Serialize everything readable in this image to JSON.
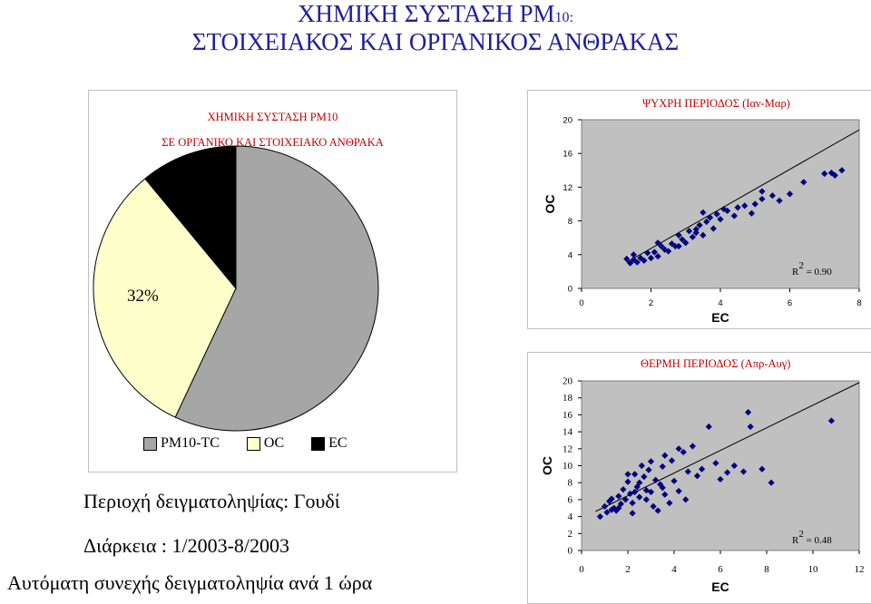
{
  "header": {
    "line1_main": "ΧΗΜΙΚΗ ΣΥΣΤΑΣΗ PM",
    "line1_sub": "10:",
    "line2": "ΣΤΟΙΧΕΙΑΚΟΣ ΚΑΙ ΟΡΓΑΝΙΚΟΣ ΑΝΘΡΑΚΑΣ"
  },
  "info": {
    "area": "Περιοχή δειγματοληψίας: Γουδί",
    "period": "Διάρκεια : 1/2003-8/2003",
    "sampling": "Αυτόματη συνεχής δειγματοληψία ανά 1 ώρα"
  },
  "colors": {
    "title": "#1f1f9e",
    "chart_title": "#c00000",
    "marker": "#000080",
    "plot_bg": "#c0c0c0",
    "pie_tc": "#a6a6a6",
    "pie_oc": "#ffffcc",
    "pie_ec": "#000000"
  },
  "chart_data": [
    {
      "type": "pie",
      "title_line1": "ΧΗΜΙΚΗ ΣΥΣΤΑΣΗ PM10",
      "title_line2": "ΣΕ ΟΡΓΑΝΙΚΟ ΚΑΙ ΣΤΟΙΧΕΙΑΚΟ ΑΝΘΡΑΚΑ",
      "slices": [
        {
          "name": "PM10-TC",
          "value": 57,
          "label": "",
          "color": "#a6a6a6"
        },
        {
          "name": "OC",
          "value": 32,
          "label": "32%",
          "color": "#ffffcc"
        },
        {
          "name": "EC",
          "value": 11,
          "label": "11%",
          "color": "#000000"
        }
      ],
      "legend": "bottom"
    },
    {
      "type": "scatter",
      "title": "ΨΥΧΡΗ ΠΕΡΙΟΔΟΣ (Ιαν-Μαρ)",
      "xlabel": "EC",
      "ylabel": "OC",
      "xlim": [
        0,
        8
      ],
      "ylim": [
        0,
        20
      ],
      "xticks": [
        "0",
        "2",
        "4",
        "6",
        "8"
      ],
      "yticks": [
        "0",
        "4",
        "8",
        "12",
        "16",
        "20"
      ],
      "annotation": "R 2 = 0.90",
      "trendline": {
        "x": [
          1.3,
          8
        ],
        "y": [
          3.1,
          18.8
        ]
      },
      "points": [
        [
          1.4,
          3.0
        ],
        [
          1.5,
          3.4
        ],
        [
          1.6,
          3.1
        ],
        [
          1.7,
          3.6
        ],
        [
          1.5,
          4.0
        ],
        [
          1.8,
          3.3
        ],
        [
          1.9,
          4.2
        ],
        [
          2.0,
          3.6
        ],
        [
          2.1,
          4.3
        ],
        [
          2.2,
          3.8
        ],
        [
          2.3,
          5.0
        ],
        [
          2.4,
          4.6
        ],
        [
          2.5,
          4.4
        ],
        [
          2.6,
          5.3
        ],
        [
          2.7,
          5.0
        ],
        [
          2.8,
          6.3
        ],
        [
          2.9,
          5.8
        ],
        [
          3.0,
          5.4
        ],
        [
          3.1,
          6.8
        ],
        [
          3.2,
          6.1
        ],
        [
          3.3,
          6.6
        ],
        [
          3.4,
          7.5
        ],
        [
          3.5,
          6.3
        ],
        [
          3.6,
          7.9
        ],
        [
          3.7,
          8.4
        ],
        [
          3.8,
          7.1
        ],
        [
          3.9,
          8.8
        ],
        [
          4.0,
          8.2
        ],
        [
          4.2,
          9.2
        ],
        [
          4.4,
          8.6
        ],
        [
          4.5,
          9.6
        ],
        [
          4.7,
          9.8
        ],
        [
          4.9,
          8.9
        ],
        [
          5.0,
          10.0
        ],
        [
          5.2,
          10.6
        ],
        [
          5.5,
          11.0
        ],
        [
          5.7,
          10.4
        ],
        [
          6.0,
          11.2
        ],
        [
          6.4,
          12.6
        ],
        [
          7.0,
          13.6
        ],
        [
          7.3,
          13.4
        ],
        [
          7.5,
          14.0
        ],
        [
          7.2,
          13.7
        ],
        [
          5.2,
          11.5
        ],
        [
          3.5,
          9.0
        ],
        [
          4.1,
          9.4
        ],
        [
          2.2,
          5.4
        ],
        [
          1.3,
          3.5
        ],
        [
          2.8,
          5.0
        ],
        [
          3.3,
          7.0
        ]
      ]
    },
    {
      "type": "scatter",
      "title": "ΘΕΡΜΗ ΠΕΡΙΟΔΟΣ  (Απρ-Αυγ)",
      "xlabel": "EC",
      "ylabel": "OC",
      "xlim": [
        0,
        12
      ],
      "ylim": [
        0,
        20
      ],
      "xticks": [
        "0",
        "2",
        "4",
        "6",
        "8",
        "10",
        "12"
      ],
      "yticks": [
        "0",
        "2",
        "4",
        "6",
        "8",
        "10",
        "12",
        "14",
        "16",
        "18",
        "20"
      ],
      "annotation": "R 2 = 0.48",
      "trendline": {
        "x": [
          0.6,
          12
        ],
        "y": [
          4.6,
          19.8
        ]
      },
      "points": [
        [
          0.8,
          4.0
        ],
        [
          1.0,
          5.2
        ],
        [
          1.1,
          4.5
        ],
        [
          1.2,
          5.8
        ],
        [
          1.3,
          6.1
        ],
        [
          1.4,
          5.0
        ],
        [
          1.5,
          4.7
        ],
        [
          1.6,
          6.4
        ],
        [
          1.7,
          5.5
        ],
        [
          1.8,
          7.2
        ],
        [
          1.9,
          6.0
        ],
        [
          2.0,
          8.1
        ],
        [
          2.1,
          6.7
        ],
        [
          2.2,
          5.6
        ],
        [
          2.3,
          9.0
        ],
        [
          2.4,
          7.5
        ],
        [
          2.5,
          6.3
        ],
        [
          2.6,
          10.0
        ],
        [
          2.7,
          8.7
        ],
        [
          2.8,
          7.1
        ],
        [
          2.9,
          9.5
        ],
        [
          3.0,
          6.9
        ],
        [
          3.1,
          5.2
        ],
        [
          3.2,
          8.3
        ],
        [
          3.3,
          4.7
        ],
        [
          3.4,
          7.8
        ],
        [
          3.5,
          9.9
        ],
        [
          3.6,
          6.6
        ],
        [
          3.8,
          5.6
        ],
        [
          3.9,
          10.6
        ],
        [
          4.0,
          8.2
        ],
        [
          4.2,
          7.0
        ],
        [
          4.4,
          11.6
        ],
        [
          4.5,
          6.0
        ],
        [
          4.6,
          9.3
        ],
        [
          4.8,
          12.3
        ],
        [
          5.0,
          8.8
        ],
        [
          5.2,
          9.6
        ],
        [
          5.5,
          14.6
        ],
        [
          5.8,
          10.3
        ],
        [
          6.0,
          8.4
        ],
        [
          6.3,
          9.2
        ],
        [
          6.6,
          10.0
        ],
        [
          7.0,
          9.3
        ],
        [
          7.2,
          16.3
        ],
        [
          7.3,
          14.6
        ],
        [
          7.8,
          9.6
        ],
        [
          8.2,
          8.0
        ],
        [
          10.8,
          15.3
        ],
        [
          2.2,
          4.4
        ],
        [
          1.6,
          5.0
        ],
        [
          2.0,
          9.0
        ],
        [
          2.5,
          8.0
        ],
        [
          3.0,
          10.5
        ],
        [
          3.6,
          11.2
        ],
        [
          4.2,
          12.0
        ],
        [
          1.3,
          4.8
        ],
        [
          2.8,
          6.0
        ],
        [
          3.5,
          7.4
        ],
        [
          2.3,
          6.9
        ]
      ]
    }
  ]
}
